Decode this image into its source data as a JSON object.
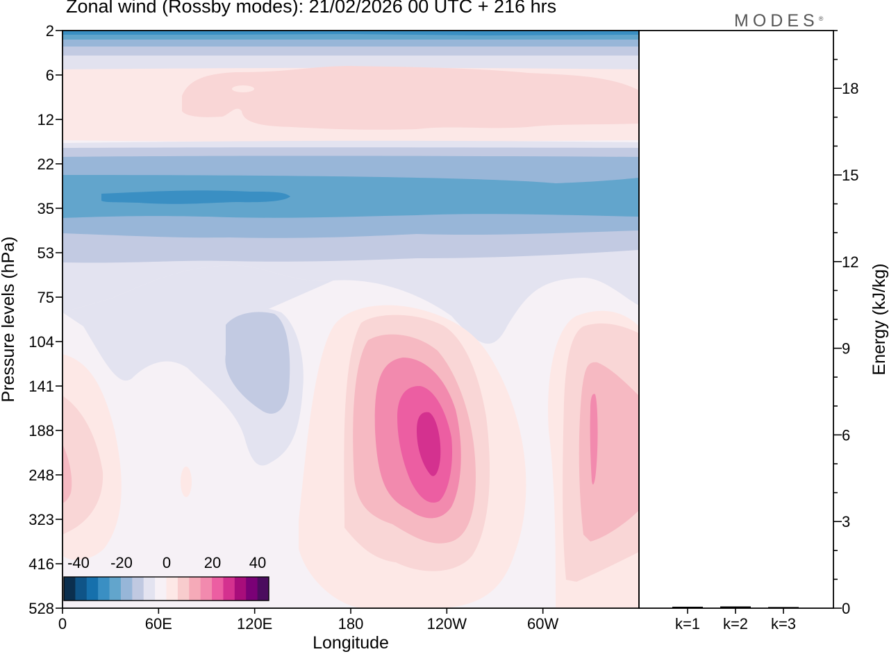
{
  "title": "Zonal wind (Rossby modes):  21/02/2026  00 UTC  + 216 hrs",
  "brand": "MODES",
  "brand_mark": "®",
  "chart_data": [
    {
      "type": "heatmap",
      "title": "Zonal wind (Rossby modes):  21/02/2026  00 UTC  + 216 hrs",
      "xlabel": "Longitude",
      "ylabel": "Pressure levels (hPa)",
      "x_ticks": [
        "0",
        "60E",
        "120E",
        "180",
        "120W",
        "60W"
      ],
      "x_tick_degrees": [
        0,
        60,
        120,
        180,
        240,
        300
      ],
      "x_range_degrees": [
        0,
        360
      ],
      "y_ticks": [
        "2",
        "6",
        "12",
        "22",
        "35",
        "53",
        "75",
        "104",
        "141",
        "188",
        "248",
        "323",
        "416",
        "528"
      ],
      "colorbar": {
        "ticks": [
          "-40",
          "-20",
          "0",
          "20",
          "40"
        ],
        "levels": [
          -45,
          -40,
          -35,
          -30,
          -25,
          -20,
          -15,
          -10,
          -5,
          5,
          10,
          15,
          20,
          25,
          30,
          35,
          40,
          45
        ],
        "colors": [
          "#0b2f4e",
          "#0f5487",
          "#1670ac",
          "#3a8fc3",
          "#62a5cc",
          "#97b6d8",
          "#c0c9e1",
          "#e3e3f0",
          "#f7f1f6",
          "#fde8e6",
          "#f8cccd",
          "#f5aab8",
          "#f28aae",
          "#ec5ea2",
          "#d4318f",
          "#a80d7b",
          "#7a0176",
          "#4b0c5e"
        ]
      },
      "features": [
        {
          "name": "easterly band",
          "min_value": -25,
          "levels": "22-35 hPa"
        },
        {
          "name": "westerly maximum",
          "max_value": 32,
          "longitude": "~115W",
          "levels": "141-323 hPa"
        },
        {
          "name": "westerly jet",
          "max_value": 22,
          "longitude": "~30W",
          "levels": "104-416 hPa"
        }
      ]
    },
    {
      "type": "bar",
      "categories": [
        "k=1",
        "k=2",
        "k=3"
      ],
      "values": [
        0.05,
        0.06,
        0.04
      ],
      "ylabel": "Energy (kJ/kg)",
      "y_ticks": [
        "0",
        "3",
        "6",
        "9",
        "12",
        "15",
        "18"
      ],
      "ylim": [
        0,
        20
      ]
    }
  ]
}
